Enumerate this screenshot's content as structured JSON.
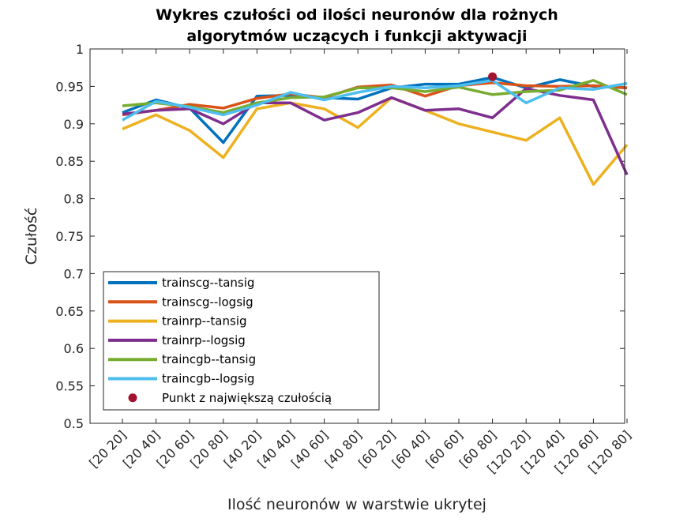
{
  "chart_data": {
    "type": "line",
    "title": [
      "Wykres czułości od ilości neuronów dla rożnych",
      "algorytmów uczących i funkcji aktywacji"
    ],
    "xlabel": "Ilość neuronów w warstwie ukrytej",
    "ylabel": "Czułość",
    "ylim": [
      0.5,
      1
    ],
    "yticks": [
      "0.5",
      "0.55",
      "0.6",
      "0.65",
      "0.7",
      "0.75",
      "0.8",
      "0.85",
      "0.9",
      "0.95",
      "1"
    ],
    "categories": [
      "[20 20]",
      "[20 40]",
      "[20 60]",
      "[20 80]",
      "[40 20]",
      "[40 40]",
      "[40 60]",
      "[40 80]",
      "[60 20]",
      "[60 40]",
      "[60 60]",
      "[60 80]",
      "[120 20]",
      "[120 40]",
      "[120 60]",
      "[120 80]"
    ],
    "series": [
      {
        "name": "trainscg--tansig",
        "color": "#0072BD",
        "values": [
          0.915,
          0.932,
          0.921,
          0.875,
          0.937,
          0.938,
          0.935,
          0.933,
          0.948,
          0.953,
          0.953,
          0.962,
          0.948,
          0.959,
          0.95,
          0.948
        ]
      },
      {
        "name": "trainscg--logsig",
        "color": "#D95319",
        "values": [
          0.912,
          0.918,
          0.926,
          0.921,
          0.934,
          0.94,
          0.935,
          0.949,
          0.952,
          0.937,
          0.951,
          0.955,
          0.951,
          0.95,
          0.951,
          0.948
        ]
      },
      {
        "name": "trainrp--tansig",
        "color": "#EDB120",
        "values": [
          0.893,
          0.912,
          0.891,
          0.855,
          0.92,
          0.928,
          0.92,
          0.895,
          0.935,
          0.918,
          0.9,
          0.889,
          0.878,
          0.908,
          0.819,
          0.872
        ]
      },
      {
        "name": "trainrp--logsig",
        "color": "#7E2F8E",
        "values": [
          0.913,
          0.918,
          0.92,
          0.9,
          0.928,
          0.928,
          0.905,
          0.915,
          0.935,
          0.918,
          0.92,
          0.908,
          0.947,
          0.938,
          0.932,
          0.832
        ]
      },
      {
        "name": "traincgb--tansig",
        "color": "#77AC30",
        "values": [
          0.924,
          0.928,
          0.923,
          0.915,
          0.928,
          0.935,
          0.936,
          0.948,
          0.948,
          0.943,
          0.949,
          0.939,
          0.943,
          0.945,
          0.958,
          0.939
        ]
      },
      {
        "name": "traincgb--logsig",
        "color": "#4DBEEE",
        "values": [
          0.905,
          0.93,
          0.922,
          0.912,
          0.925,
          0.942,
          0.932,
          0.942,
          0.95,
          0.948,
          0.951,
          0.958,
          0.928,
          0.948,
          0.946,
          0.954
        ]
      }
    ],
    "highlight": {
      "name": "Punkt z największą czułością",
      "color": "#A2142F",
      "category": "[60 80]",
      "value": 0.963
    },
    "legend_position": "bottom-left",
    "grid": false
  }
}
